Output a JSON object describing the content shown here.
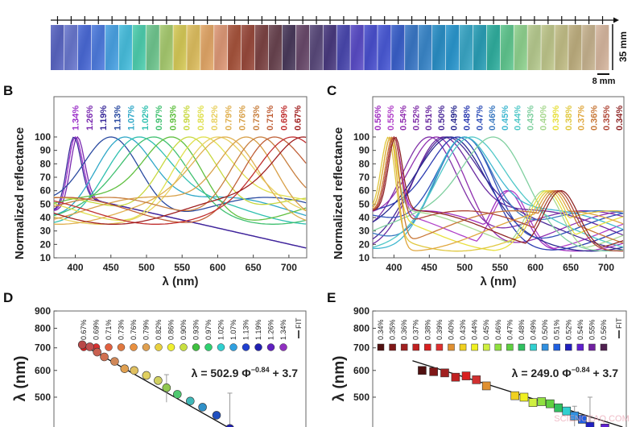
{
  "panel_a": {
    "scale_height_label": "35 mm",
    "scale_width_label": "8 mm",
    "strip_colors": [
      "#5a66c4",
      "#6a78d0",
      "#4a6ad8",
      "#4e7ce0",
      "#4aa4e6",
      "#48c0e0",
      "#4ed0b0",
      "#70c890",
      "#a8cc70",
      "#d8cc58",
      "#e0c060",
      "#e4a868",
      "#e09a78",
      "#a8543c",
      "#9a4a3c",
      "#7e4444",
      "#6a4450",
      "#4a3a5c",
      "#6a4a6c",
      "#5a4a7c",
      "#4a3a80",
      "#4a48b0",
      "#5a4cc8",
      "#4a50d0",
      "#4a5ad8",
      "#3a60cc",
      "#3a78c8",
      "#3a88cc",
      "#2a90c8",
      "#2a98d0",
      "#3aa8c8",
      "#2aa0b8",
      "#30b0a0",
      "#60c890",
      "#90d490",
      "#b8cc90",
      "#c0c88c",
      "#c4c088",
      "#c0b080",
      "#c8b490",
      "#d8b8a0"
    ]
  },
  "chart_data": [
    {
      "panel": "B",
      "type": "line",
      "xlabel": "λ (nm)",
      "ylabel": "Normalized reflectance",
      "xlim": [
        370,
        725
      ],
      "ylim": [
        10,
        100
      ],
      "xticks": [
        "400",
        "450",
        "500",
        "550",
        "600",
        "650",
        "700"
      ],
      "yticks": [
        "10",
        "20",
        "30",
        "40",
        "50",
        "60",
        "70",
        "80",
        "90",
        "100"
      ],
      "series": [
        {
          "name": "1.34%",
          "peak_nm": 400,
          "color": "#9b30c8"
        },
        {
          "name": "1.26%",
          "peak_nm": 403,
          "color": "#7a2ab0"
        },
        {
          "name": "1.19%",
          "peak_nm": 398,
          "color": "#3a2a9a"
        },
        {
          "name": "1.13%",
          "peak_nm": 450,
          "color": "#2a4aa0"
        },
        {
          "name": "1.07%",
          "peak_nm": 470,
          "color": "#30a8c8"
        },
        {
          "name": "1.02%",
          "peak_nm": 490,
          "color": "#30c0b0"
        },
        {
          "name": "0.97%",
          "peak_nm": 510,
          "color": "#40c070"
        },
        {
          "name": "0.93%",
          "peak_nm": 535,
          "color": "#60c040"
        },
        {
          "name": "0.90%",
          "peak_nm": 560,
          "color": "#c8d840"
        },
        {
          "name": "0.86%",
          "peak_nm": 580,
          "color": "#e0e050"
        },
        {
          "name": "0.82%",
          "peak_nm": 600,
          "color": "#e8d060"
        },
        {
          "name": "0.79%",
          "peak_nm": 610,
          "color": "#e0b050"
        },
        {
          "name": "0.76%",
          "peak_nm": 640,
          "color": "#d8a048"
        },
        {
          "name": "0.73%",
          "peak_nm": 660,
          "color": "#c88040"
        },
        {
          "name": "0.71%",
          "peak_nm": 680,
          "color": "#c06038"
        },
        {
          "name": "0.69%",
          "peak_nm": 705,
          "color": "#c03030"
        },
        {
          "name": "0.67%",
          "peak_nm": 720,
          "color": "#a02020"
        }
      ]
    },
    {
      "panel": "C",
      "type": "line",
      "xlabel": "λ (nm)",
      "ylabel": "Normalized reflectance",
      "xlim": [
        370,
        725
      ],
      "ylim": [
        10,
        100
      ],
      "xticks": [
        "400",
        "450",
        "500",
        "550",
        "600",
        "650",
        "700"
      ],
      "yticks": [
        "10",
        "20",
        "30",
        "40",
        "50",
        "60",
        "70",
        "80",
        "90",
        "100"
      ],
      "series": [
        {
          "name": "0.56%",
          "peak_nm": 400,
          "color": "#a030c0"
        },
        {
          "name": "0.55%",
          "peak_nm": 400,
          "color": "#b040c8"
        },
        {
          "name": "0.54%",
          "peak_nm": 460,
          "color": "#9030b0"
        },
        {
          "name": "0.52%",
          "peak_nm": 450,
          "color": "#8030a8"
        },
        {
          "name": "0.51%",
          "peak_nm": 470,
          "color": "#6a2aa0"
        },
        {
          "name": "0.50%",
          "peak_nm": 475,
          "color": "#4a2a98"
        },
        {
          "name": "0.49%",
          "peak_nm": 480,
          "color": "#2a2a90"
        },
        {
          "name": "0.48%",
          "peak_nm": 490,
          "color": "#2a3ab0"
        },
        {
          "name": "0.47%",
          "peak_nm": 500,
          "color": "#3050b8"
        },
        {
          "name": "0.46%",
          "peak_nm": 500,
          "color": "#3a78c0"
        },
        {
          "name": "0.45%",
          "peak_nm": 500,
          "color": "#40b8d0"
        },
        {
          "name": "0.44%",
          "peak_nm": 510,
          "color": "#50c8c8"
        },
        {
          "name": "0.43%",
          "peak_nm": 540,
          "color": "#80d0a0"
        },
        {
          "name": "0.40%",
          "peak_nm": 395,
          "color": "#a8d890"
        },
        {
          "name": "0.39%",
          "peak_nm": 395,
          "color": "#e8e040"
        },
        {
          "name": "0.38%",
          "peak_nm": 392,
          "color": "#e0c840"
        },
        {
          "name": "0.37%",
          "peak_nm": 395,
          "color": "#e0a840"
        },
        {
          "name": "0.36%",
          "peak_nm": 398,
          "color": "#c87838"
        },
        {
          "name": "0.35%",
          "peak_nm": 400,
          "color": "#b04838"
        },
        {
          "name": "0.34%",
          "peak_nm": 402,
          "color": "#902828"
        }
      ]
    },
    {
      "panel": "D",
      "type": "scatter",
      "ylabel": "λ (nm)",
      "yscale": "log",
      "ylim": [
        400,
        900
      ],
      "yticks": [
        "900",
        "800",
        "700",
        "600",
        "500"
      ],
      "equation": "λ = 502.9 Φ",
      "equation_exp": "−0.84",
      "equation_tail": " + 3.7",
      "fit_label": "FIT",
      "legend": [
        {
          "name": "0.67%",
          "color": "#d02020"
        },
        {
          "name": "0.69%",
          "color": "#d83030"
        },
        {
          "name": "0.71%",
          "color": "#e06040"
        },
        {
          "name": "0.73%",
          "color": "#e07840"
        },
        {
          "name": "0.76%",
          "color": "#e89040"
        },
        {
          "name": "0.79%",
          "color": "#e0a050"
        },
        {
          "name": "0.82%",
          "color": "#e8d040"
        },
        {
          "name": "0.86%",
          "color": "#f0f030"
        },
        {
          "name": "0.90%",
          "color": "#c8e040"
        },
        {
          "name": "0.93%",
          "color": "#40c040"
        },
        {
          "name": "0.97%",
          "color": "#30d070"
        },
        {
          "name": "1.02%",
          "color": "#30d0d0"
        },
        {
          "name": "1.07%",
          "color": "#30a0e0"
        },
        {
          "name": "1.13%",
          "color": "#2040d0"
        },
        {
          "name": "1.19%",
          "color": "#2020b0"
        },
        {
          "name": "1.26%",
          "color": "#6020c0"
        },
        {
          "name": "1.34%",
          "color": "#9030c0"
        }
      ],
      "points": [
        {
          "phi": 0.67,
          "lambda": 715,
          "color": "#b84848"
        },
        {
          "phi": 0.69,
          "lambda": 705,
          "color": "#c05050"
        },
        {
          "phi": 0.71,
          "lambda": 680,
          "color": "#c86050"
        },
        {
          "phi": 0.73,
          "lambda": 658,
          "color": "#d07050"
        },
        {
          "phi": 0.76,
          "lambda": 638,
          "color": "#d08858"
        },
        {
          "phi": 0.79,
          "lambda": 607,
          "color": "#e0a050"
        },
        {
          "phi": 0.82,
          "lambda": 600,
          "color": "#e0c060"
        },
        {
          "phi": 0.86,
          "lambda": 580,
          "color": "#e0d060"
        },
        {
          "phi": 0.9,
          "lambda": 560,
          "color": "#d0d060"
        },
        {
          "phi": 0.93,
          "lambda": 533,
          "color": "#90c850",
          "err": 50
        },
        {
          "phi": 0.97,
          "lambda": 510,
          "color": "#50c870"
        },
        {
          "phi": 1.02,
          "lambda": 487,
          "color": "#40b8b8"
        },
        {
          "phi": 1.07,
          "lambda": 467,
          "color": "#3090c8"
        },
        {
          "phi": 1.13,
          "lambda": 442,
          "color": "#2050c0"
        },
        {
          "phi": 1.19,
          "lambda": 404,
          "color": "#2020b0",
          "err": 110
        }
      ]
    },
    {
      "panel": "E",
      "type": "scatter",
      "ylabel": "λ (nm)",
      "yscale": "log",
      "ylim": [
        400,
        900
      ],
      "yticks": [
        "900",
        "800",
        "700",
        "600",
        "500"
      ],
      "equation": "λ = 249.0 Φ",
      "equation_exp": "−0.84",
      "equation_tail": " + 3.7",
      "fit_label": "FIT",
      "legend": [
        {
          "name": "0.34%",
          "color": "#501010"
        },
        {
          "name": "0.35%",
          "color": "#801818"
        },
        {
          "name": "0.36%",
          "color": "#a02020"
        },
        {
          "name": "0.37%",
          "color": "#c02020"
        },
        {
          "name": "0.38%",
          "color": "#d82020"
        },
        {
          "name": "0.39%",
          "color": "#e03030"
        },
        {
          "name": "0.40%",
          "color": "#e09030"
        },
        {
          "name": "0.43%",
          "color": "#f0d020"
        },
        {
          "name": "0.44%",
          "color": "#f0f020"
        },
        {
          "name": "0.45%",
          "color": "#d0f040"
        },
        {
          "name": "0.46%",
          "color": "#90e040"
        },
        {
          "name": "0.47%",
          "color": "#60d040"
        },
        {
          "name": "0.48%",
          "color": "#30c060"
        },
        {
          "name": "0.49%",
          "color": "#30d0d0"
        },
        {
          "name": "0.50%",
          "color": "#3090e0"
        },
        {
          "name": "0.51%",
          "color": "#2060e0"
        },
        {
          "name": "0.52%",
          "color": "#2020c0"
        },
        {
          "name": "0.54%",
          "color": "#6020d0"
        },
        {
          "name": "0.55%",
          "color": "#7020a0"
        },
        {
          "name": "0.56%",
          "color": "#502050"
        }
      ],
      "points": [
        {
          "phi": 0.34,
          "lambda": 600,
          "color": "#501010"
        },
        {
          "phi": 0.35,
          "lambda": 595,
          "color": "#801818"
        },
        {
          "phi": 0.36,
          "lambda": 590,
          "color": "#a02020"
        },
        {
          "phi": 0.37,
          "lambda": 573,
          "color": "#c02020"
        },
        {
          "phi": 0.38,
          "lambda": 578,
          "color": "#d82020"
        },
        {
          "phi": 0.39,
          "lambda": 563,
          "color": "#d03030"
        },
        {
          "phi": 0.4,
          "lambda": 540,
          "color": "#e09030"
        },
        {
          "phi": 0.43,
          "lambda": 505,
          "color": "#f0d020"
        },
        {
          "phi": 0.44,
          "lambda": 500,
          "color": "#f0f020"
        },
        {
          "phi": 0.45,
          "lambda": 482,
          "color": "#d0f040"
        },
        {
          "phi": 0.46,
          "lambda": 485,
          "color": "#90e040"
        },
        {
          "phi": 0.47,
          "lambda": 478,
          "color": "#60d040"
        },
        {
          "phi": 0.48,
          "lambda": 465,
          "color": "#30c060"
        },
        {
          "phi": 0.49,
          "lambda": 455,
          "color": "#30d0d0"
        },
        {
          "phi": 0.5,
          "lambda": 440,
          "color": "#3090e0",
          "err": 30
        },
        {
          "phi": 0.51,
          "lambda": 430,
          "color": "#2060e0"
        },
        {
          "phi": 0.52,
          "lambda": 410,
          "color": "#2020c0",
          "err": 90
        },
        {
          "phi": 0.54,
          "lambda": 405,
          "color": "#6020d0"
        }
      ]
    }
  ],
  "panel_letters": {
    "b": "B",
    "c": "C",
    "d": "D",
    "e": "E"
  },
  "watermark": "SCIENCEAQ.COM"
}
